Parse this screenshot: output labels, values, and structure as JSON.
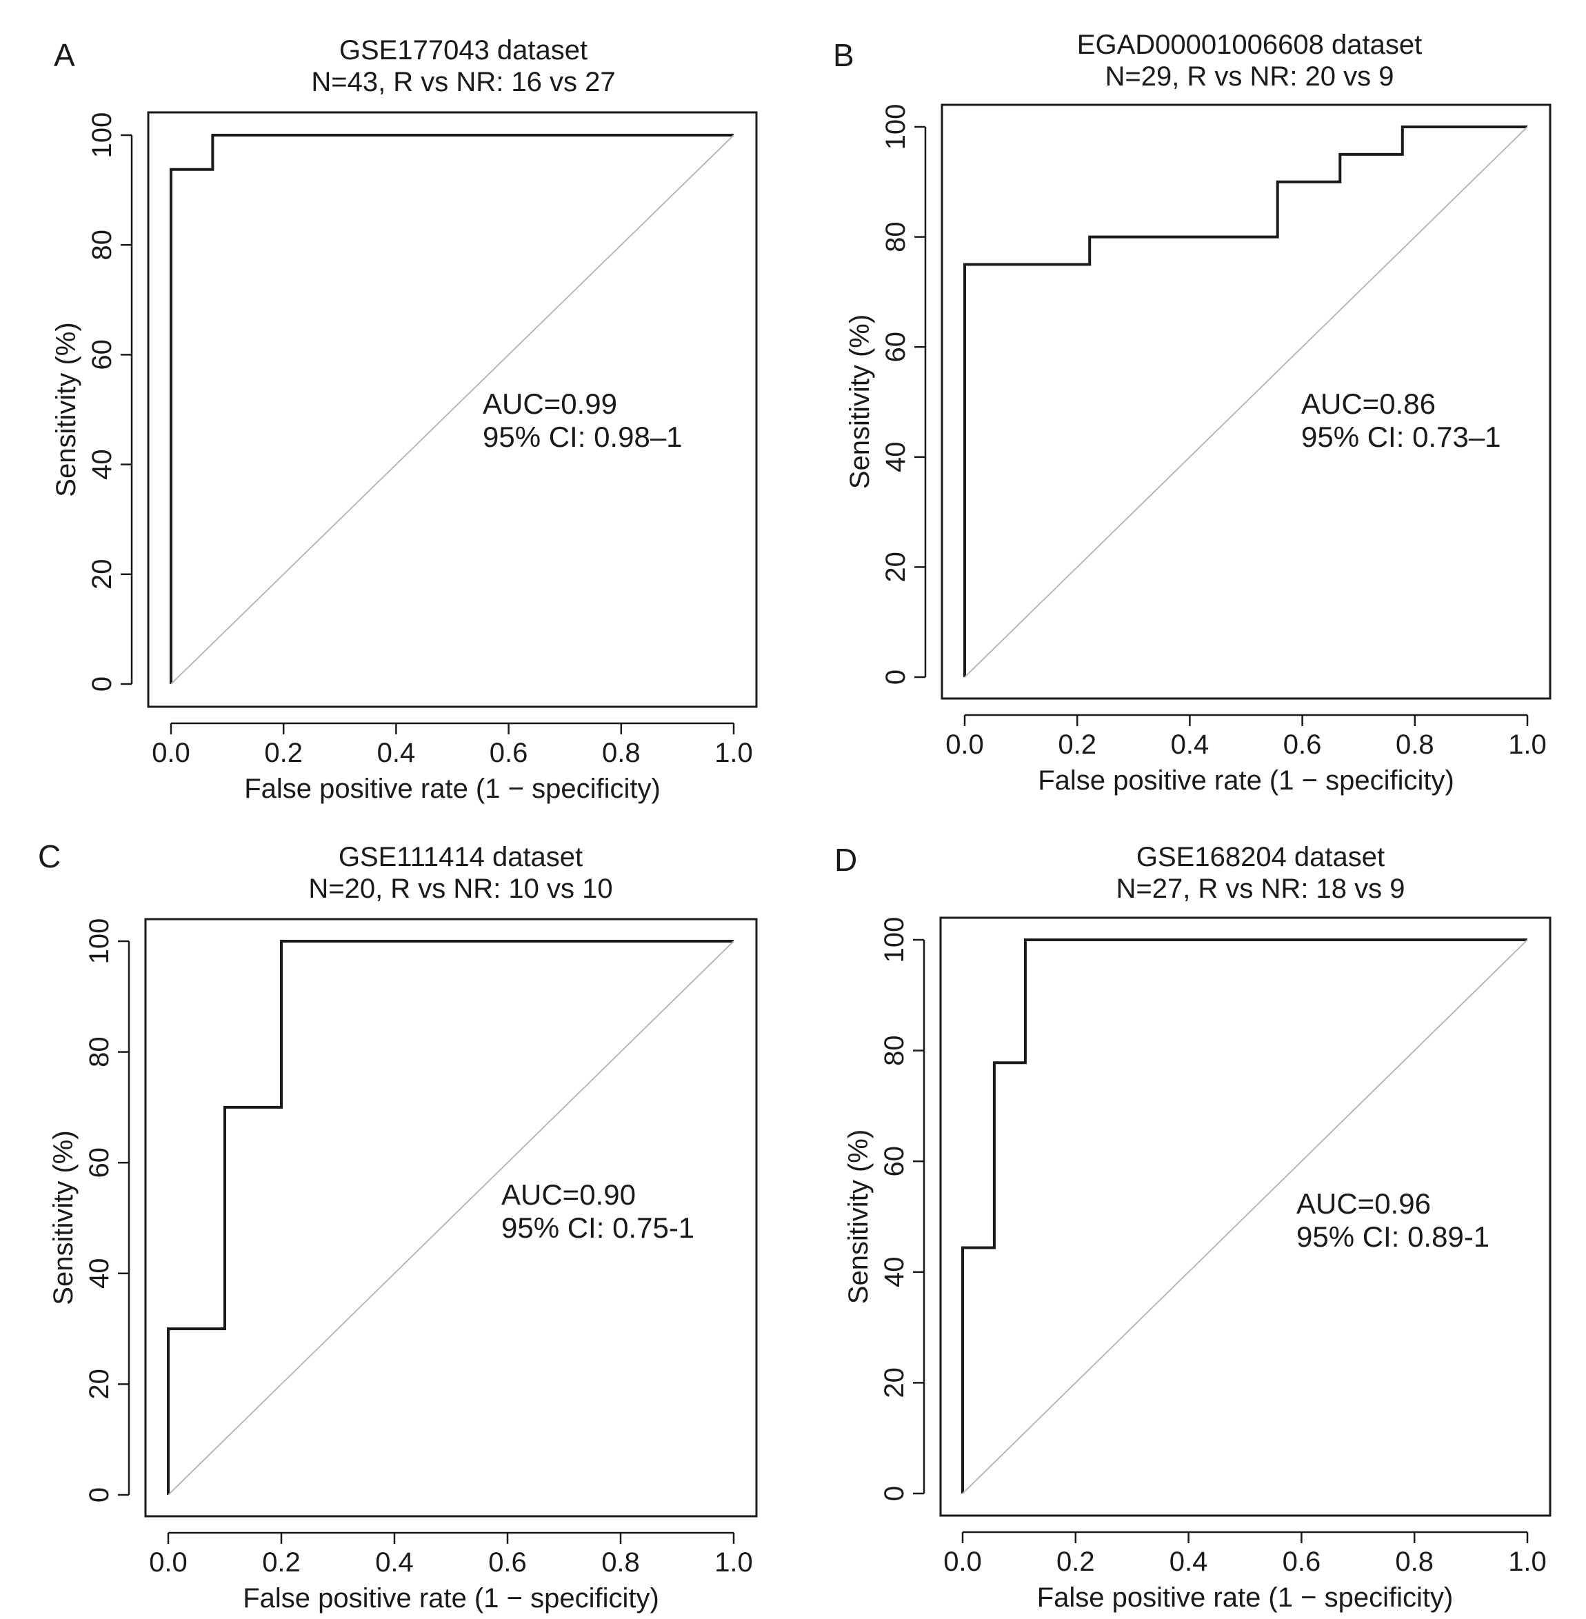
{
  "figure": {
    "line_color": "#1a1a1a",
    "diagonal_color": "#b8b8b8"
  },
  "chart_data": [
    {
      "type": "line",
      "panel": "A",
      "title": "GSE177043 dataset",
      "subtitle": "N=43, R vs NR: 16 vs 27",
      "xlabel": "False positive rate (1 − specificity)",
      "ylabel": "Sensitivity (%)",
      "xlim": [
        0,
        1
      ],
      "ylim": [
        0,
        100
      ],
      "x_ticks": [
        "0.0",
        "0.2",
        "0.4",
        "0.6",
        "0.8",
        "1.0"
      ],
      "y_ticks": [
        "0",
        "20",
        "40",
        "60",
        "80",
        "100"
      ],
      "auc_label": "AUC=0.99",
      "ci_label": "95% CI: 0.98–1",
      "series": [
        {
          "name": "ROC",
          "x": [
            0,
            0,
            0.074,
            0.074,
            1.0
          ],
          "y": [
            0,
            93.75,
            93.75,
            100,
            100
          ]
        },
        {
          "name": "reference",
          "x": [
            0,
            1
          ],
          "y": [
            0,
            100
          ]
        }
      ]
    },
    {
      "type": "line",
      "panel": "B",
      "title": "EGAD00001006608 dataset",
      "subtitle": "N=29, R vs NR: 20 vs 9",
      "xlabel": "False positive rate (1 − specificity)",
      "ylabel": "Sensitivity (%)",
      "xlim": [
        0,
        1
      ],
      "ylim": [
        0,
        100
      ],
      "x_ticks": [
        "0.0",
        "0.2",
        "0.4",
        "0.6",
        "0.8",
        "1.0"
      ],
      "y_ticks": [
        "0",
        "20",
        "40",
        "60",
        "80",
        "100"
      ],
      "auc_label": "AUC=0.86",
      "ci_label": "95% CI: 0.73–1",
      "series": [
        {
          "name": "ROC",
          "x": [
            0,
            0,
            0.222,
            0.222,
            0.556,
            0.556,
            0.667,
            0.667,
            0.778,
            0.778,
            1.0
          ],
          "y": [
            0,
            75,
            75,
            80,
            80,
            90,
            90,
            95,
            95,
            100,
            100
          ]
        },
        {
          "name": "reference",
          "x": [
            0,
            1
          ],
          "y": [
            0,
            100
          ]
        }
      ]
    },
    {
      "type": "line",
      "panel": "C",
      "title": "GSE111414 dataset",
      "subtitle": "N=20, R vs NR: 10 vs 10",
      "xlabel": "False positive rate (1 − specificity)",
      "ylabel": "Sensitivity (%)",
      "xlim": [
        0,
        1
      ],
      "ylim": [
        0,
        100
      ],
      "x_ticks": [
        "0.0",
        "0.2",
        "0.4",
        "0.6",
        "0.8",
        "1.0"
      ],
      "y_ticks": [
        "0",
        "20",
        "40",
        "60",
        "80",
        "100"
      ],
      "auc_label": "AUC=0.90",
      "ci_label": "95% CI: 0.75-1",
      "series": [
        {
          "name": "ROC",
          "x": [
            0,
            0,
            0.1,
            0.1,
            0.2,
            0.2,
            1.0
          ],
          "y": [
            0,
            30,
            30,
            70,
            70,
            100,
            100
          ]
        },
        {
          "name": "reference",
          "x": [
            0,
            1
          ],
          "y": [
            0,
            100
          ]
        }
      ]
    },
    {
      "type": "line",
      "panel": "D",
      "title": "GSE168204 dataset",
      "subtitle": "N=27, R vs NR: 18 vs 9",
      "xlabel": "False positive rate (1 − specificity)",
      "ylabel": "Sensitivity (%)",
      "xlim": [
        0,
        1
      ],
      "ylim": [
        0,
        100
      ],
      "x_ticks": [
        "0.0",
        "0.2",
        "0.4",
        "0.6",
        "0.8",
        "1.0"
      ],
      "y_ticks": [
        "0",
        "20",
        "40",
        "60",
        "80",
        "100"
      ],
      "auc_label": "AUC=0.96",
      "ci_label": "95% CI: 0.89-1",
      "series": [
        {
          "name": "ROC",
          "x": [
            0,
            0,
            0.056,
            0.056,
            0.111,
            0.111,
            1.0
          ],
          "y": [
            0,
            44.4,
            44.4,
            77.8,
            77.8,
            100,
            100
          ]
        },
        {
          "name": "reference",
          "x": [
            0,
            1
          ],
          "y": [
            0,
            100
          ]
        }
      ]
    }
  ]
}
